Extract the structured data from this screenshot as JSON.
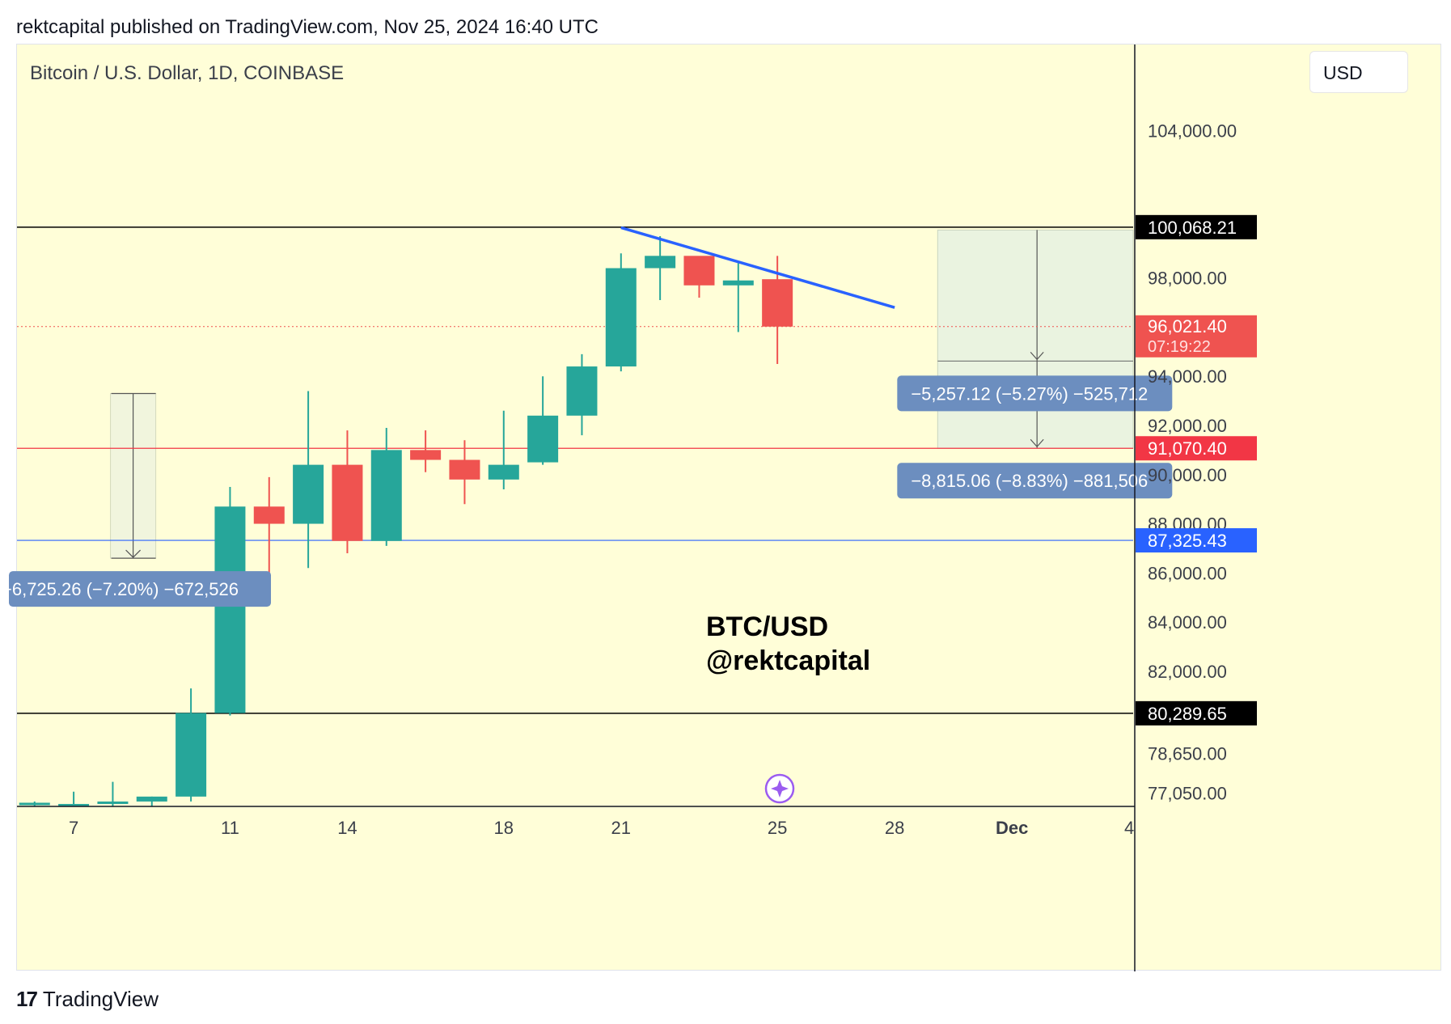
{
  "header": "rektcapital published on TradingView.com, Nov 25, 2024 16:40 UTC",
  "symbol_title": "Bitcoin / U.S. Dollar, 1D, COINBASE",
  "currency": "USD",
  "footer": {
    "logo_icon": "tradingview-logo-icon",
    "logo_glyph": "17",
    "brand": "TradingView"
  },
  "watermark": [
    "BTC/USD",
    "@rektcapital"
  ],
  "colors": {
    "up": "#26a69a",
    "down": "#ef5350",
    "trendline": "#2962ff",
    "background": "#fffed8",
    "label_box": "#6c8ebf"
  },
  "chart_data": {
    "type": "candlestick",
    "ylim": [
      76500,
      107500
    ],
    "y_ticks": [
      {
        "value": 104000,
        "label": "104,000.00"
      },
      {
        "value": 98000,
        "label": "98,000.00"
      },
      {
        "value": 94000,
        "label": "94,000.00"
      },
      {
        "value": 92000,
        "label": "92,000.00"
      },
      {
        "value": 90000,
        "label": "90,000.00"
      },
      {
        "value": 88000,
        "label": "88,000.00"
      },
      {
        "value": 86000,
        "label": "86,000.00"
      },
      {
        "value": 84000,
        "label": "84,000.00"
      },
      {
        "value": 82000,
        "label": "82,000.00"
      },
      {
        "value": 78650,
        "label": "78,650.00"
      },
      {
        "value": 77050,
        "label": "77,050.00"
      }
    ],
    "x_ticks": [
      {
        "day": 7,
        "label": "7"
      },
      {
        "day": 11,
        "label": "11"
      },
      {
        "day": 14,
        "label": "14"
      },
      {
        "day": 18,
        "label": "18"
      },
      {
        "day": 21,
        "label": "21"
      },
      {
        "day": 25,
        "label": "25"
      },
      {
        "day": 28,
        "label": "28"
      },
      {
        "day": 31,
        "label": "Dec"
      },
      {
        "day": 34,
        "label": "4"
      }
    ],
    "xlim": [
      5.55,
      34.1
    ],
    "candles": [
      {
        "day": 6,
        "o": 76600,
        "h": 76700,
        "l": 76500,
        "c": 76650
      },
      {
        "day": 7,
        "o": 76550,
        "h": 77100,
        "l": 76500,
        "c": 76600
      },
      {
        "day": 8,
        "o": 76600,
        "h": 77500,
        "l": 76500,
        "c": 76700
      },
      {
        "day": 9,
        "o": 76700,
        "h": 76900,
        "l": 76500,
        "c": 76900
      },
      {
        "day": 10,
        "o": 76900,
        "h": 81300,
        "l": 76700,
        "c": 80300
      },
      {
        "day": 11,
        "o": 80300,
        "h": 89500,
        "l": 80200,
        "c": 88700
      },
      {
        "day": 12,
        "o": 88700,
        "h": 89900,
        "l": 85000,
        "c": 88000
      },
      {
        "day": 13,
        "o": 88000,
        "h": 93400,
        "l": 86200,
        "c": 90400
      },
      {
        "day": 14,
        "o": 90400,
        "h": 91800,
        "l": 86800,
        "c": 87300
      },
      {
        "day": 15,
        "o": 87300,
        "h": 91900,
        "l": 87100,
        "c": 91000
      },
      {
        "day": 16,
        "o": 91000,
        "h": 91800,
        "l": 90100,
        "c": 90600
      },
      {
        "day": 17,
        "o": 90600,
        "h": 91400,
        "l": 88800,
        "c": 89800
      },
      {
        "day": 18,
        "o": 89800,
        "h": 92600,
        "l": 89400,
        "c": 90400
      },
      {
        "day": 19,
        "o": 90500,
        "h": 94000,
        "l": 90400,
        "c": 92400
      },
      {
        "day": 20,
        "o": 92400,
        "h": 94900,
        "l": 91600,
        "c": 94400
      },
      {
        "day": 21,
        "o": 94400,
        "h": 99000,
        "l": 94200,
        "c": 98400
      },
      {
        "day": 22,
        "o": 98400,
        "h": 99700,
        "l": 97100,
        "c": 98900
      },
      {
        "day": 23,
        "o": 98900,
        "h": 98800,
        "l": 97200,
        "c": 97700
      },
      {
        "day": 24,
        "o": 97700,
        "h": 98600,
        "l": 95800,
        "c": 97900
      },
      {
        "day": 25,
        "o": 97950,
        "h": 98900,
        "l": 94500,
        "c": 96021.4
      }
    ],
    "levels": [
      {
        "value": 100068.21,
        "label": "100,068.21",
        "color": "#000000"
      },
      {
        "value": 91070.4,
        "label": "91,070.40",
        "color": "#f23645"
      },
      {
        "value": 87325.43,
        "label": "87,325.43",
        "color": "#2962ff"
      },
      {
        "value": 80289.65,
        "label": "80,289.65",
        "color": "#000000"
      }
    ],
    "last_price": {
      "value": 96021.4,
      "label": "96,021.40",
      "countdown": "07:19:22"
    },
    "trendline": {
      "from": {
        "day": 21,
        "value": 100050
      },
      "to": {
        "day": 28,
        "value": 96800
      }
    },
    "measurements": [
      {
        "from": {
          "day": 29.1,
          "value": 99950
        },
        "to": {
          "day": 34.1,
          "value": 94620
        },
        "label": "−5,257.12 (−5.27%) −525,712"
      },
      {
        "from": {
          "day": 29.1,
          "value": 99950
        },
        "to": {
          "day": 34.1,
          "value": 91070.4
        },
        "label": "−8,815.06 (−8.83%) −881,506"
      },
      {
        "from": {
          "day": 8.5,
          "value": 93300
        },
        "to": {
          "day": 9.5,
          "value": 86600
        },
        "label": "−6,725.26 (−7.20%) −672,526"
      }
    ]
  }
}
